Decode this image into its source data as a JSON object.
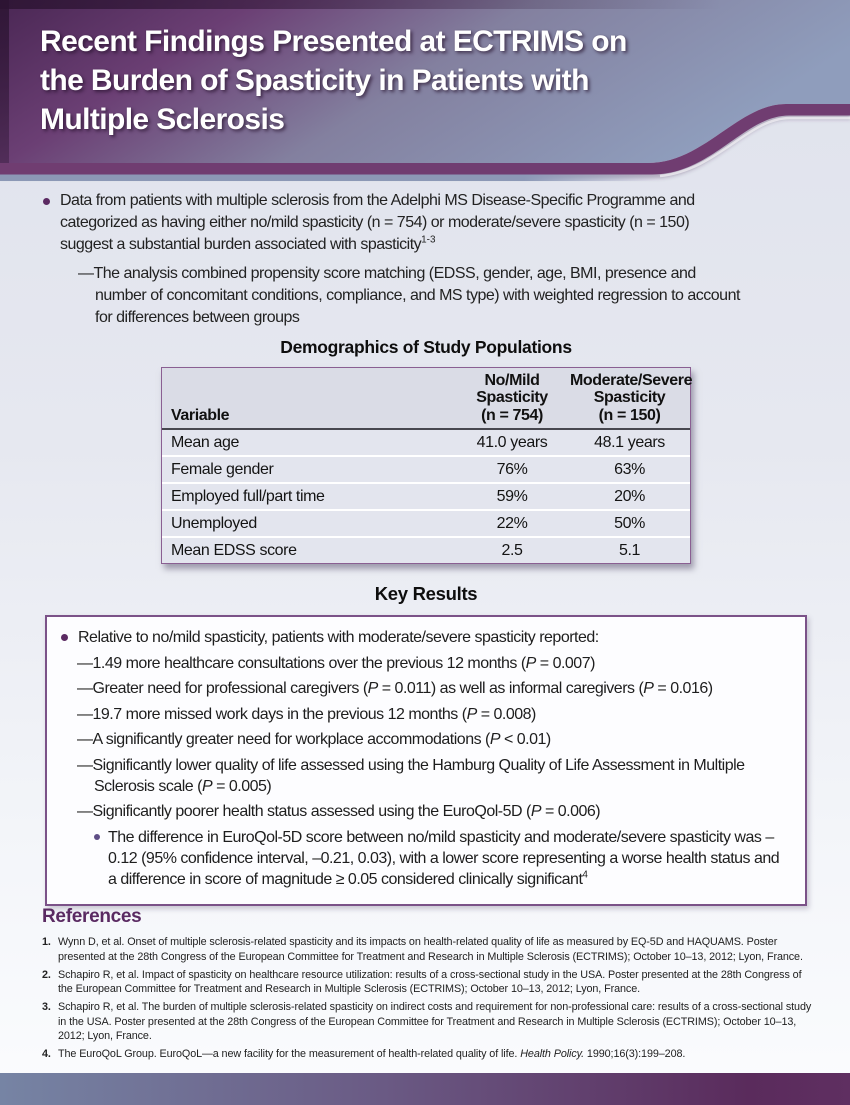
{
  "colors": {
    "accent_purple": "#5b2a62",
    "swoosh_band_purple": "#703d71",
    "header_blue_gray": "#8f9dbc",
    "table_border_purple": "#8a5f92",
    "box_border_purple": "#7b5288",
    "footer_left": "#7684a4",
    "footer_right": "#5a2b5c"
  },
  "header": {
    "title_lines": [
      "Recent Findings Presented at ECTRIMS on",
      "the Burden of Spasticity in Patients with",
      "Multiple Sclerosis"
    ]
  },
  "intro": {
    "bullet_para_lines": [
      [
        {
          "t": "Data from patients with multiple sclerosis from the Adelphi MS Disease-Specific Programme and"
        }
      ],
      [
        {
          "t": "categorized as having either no/mild spasticity (n = 754) or moderate/severe spasticity (n = 150)"
        }
      ],
      [
        {
          "t": "suggest a substantial burden associated with spasticity"
        },
        {
          "t": "1-3",
          "style": "sup"
        }
      ]
    ],
    "dash_para_lines": [
      [
        {
          "t": "—The analysis combined propensity score matching (EDSS, gender, age, BMI, presence and"
        }
      ],
      [
        {
          "t": "number of concomitant conditions, compliance, and MS type) with weighted regression to account"
        }
      ],
      [
        {
          "t": "for differences between groups"
        }
      ]
    ]
  },
  "table": {
    "title": "Demographics of Study Populations",
    "col_headers": {
      "variable": "Variable",
      "col1_lines": [
        "No/Mild",
        "Spasticity",
        "(n = 754)"
      ],
      "col2_lines": [
        "Moderate/Severe",
        "Spasticity",
        "(n = 150)"
      ]
    },
    "rows": [
      {
        "label": "Mean age",
        "col1": "41.0 years",
        "col2": "48.1 years"
      },
      {
        "label": "Female gender",
        "col1": "76%",
        "col2": "63%"
      },
      {
        "label": "Employed full/part time",
        "col1": "59%",
        "col2": "20%"
      },
      {
        "label": "Unemployed",
        "col1": "22%",
        "col2": "50%"
      },
      {
        "label": "Mean EDSS score",
        "col1": "2.5",
        "col2": "5.1"
      }
    ]
  },
  "key_results": {
    "heading": "Key Results",
    "intro": [
      {
        "t": "Relative to no/mild spasticity, patients with moderate/severe spasticity reported:"
      }
    ],
    "items": [
      [
        {
          "t": "—1.49 more healthcare consultations over the previous 12 months ("
        },
        {
          "t": "P",
          "style": "i"
        },
        {
          "t": " = 0.007)"
        }
      ],
      [
        {
          "t": "—Greater need for professional caregivers ("
        },
        {
          "t": "P",
          "style": "i"
        },
        {
          "t": " = 0.011) as well as informal caregivers ("
        },
        {
          "t": "P",
          "style": "i"
        },
        {
          "t": " = 0.016)"
        }
      ],
      [
        {
          "t": "—19.7 more missed work days in the previous 12 months ("
        },
        {
          "t": "P",
          "style": "i"
        },
        {
          "t": " = 0.008)"
        }
      ],
      [
        {
          "t": "—A significantly greater need for workplace accommodations ("
        },
        {
          "t": "P",
          "style": "i"
        },
        {
          "t": " < 0.01)"
        }
      ],
      [
        {
          "t": "—Significantly lower quality of life assessed using the Hamburg Quality of Life Assessment in Multiple Sclerosis scale ("
        },
        {
          "t": "P",
          "style": "i"
        },
        {
          "t": " = 0.005)"
        }
      ],
      [
        {
          "t": "—Significantly poorer health status assessed using the EuroQol-5D ("
        },
        {
          "t": "P",
          "style": "i"
        },
        {
          "t": " = 0.006)"
        }
      ]
    ],
    "sub_bullet": [
      {
        "t": "The difference in EuroQol-5D score between no/mild spasticity and moderate/severe spasticity was –0.12 (95% confidence interval, –0.21, 0.03), with a lower score representing a worse health status and a difference in score of magnitude ≥ 0.05 considered clinically significant"
      },
      {
        "t": "4",
        "style": "sup"
      }
    ]
  },
  "references": {
    "heading": "References",
    "items": [
      {
        "num": "1.",
        "segments": [
          {
            "t": "Wynn D, et al. Onset of multiple sclerosis-related spasticity and its impacts on health-related quality of life as measured by EQ-5D and HAQUAMS. Poster presented at the 28th Congress of the European Committee for Treatment and Research in Multiple Sclerosis (ECTRIMS); October 10–13, 2012; Lyon, France."
          }
        ]
      },
      {
        "num": "2.",
        "segments": [
          {
            "t": "Schapiro R, et al. Impact of spasticity on healthcare resource utilization: results of a cross-sectional study in the USA. Poster presented at the 28th Congress of the European Committee for Treatment and Research in Multiple Sclerosis (ECTRIMS); October 10–13, 2012; Lyon, France."
          }
        ]
      },
      {
        "num": "3.",
        "segments": [
          {
            "t": "Schapiro R, et al. The burden of multiple sclerosis-related spasticity on indirect costs and requirement for non-professional care: results of a cross-sectional study in the USA. Poster presented at the 28th Congress of the European Committee for Treatment and Research in Multiple Sclerosis (ECTRIMS); October 10–13, 2012; Lyon, France."
          }
        ]
      },
      {
        "num": "4.",
        "segments": [
          {
            "t": "The EuroQoL Group. EuroQoL—a new facility for the measurement of health-related quality of life. "
          },
          {
            "t": "Health Policy.",
            "style": "i"
          },
          {
            "t": " 1990;16(3):199–208."
          }
        ]
      }
    ]
  }
}
